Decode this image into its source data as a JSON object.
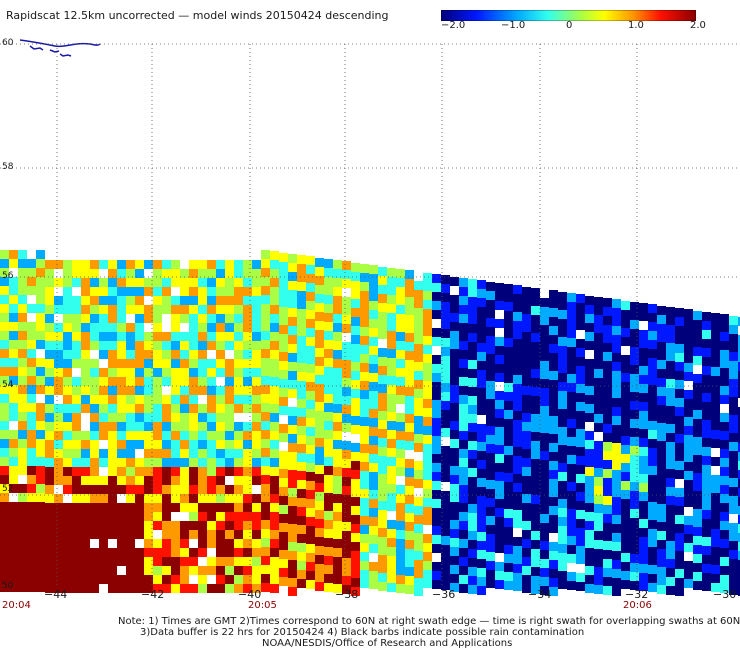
{
  "title": "Rapidscat 12.5km uncorrected — model winds 20150424 descending",
  "colorbar": {
    "ticks": [
      "−2.0",
      "−1.0",
      "0",
      "1.0",
      "2.0"
    ],
    "min": -2.0,
    "max": 2.0,
    "colors": [
      "#00007a",
      "#0018ff",
      "#00aaff",
      "#33ffee",
      "#aaff44",
      "#ffff00",
      "#ff9900",
      "#ff1100",
      "#8b0000"
    ]
  },
  "map": {
    "lat_labels": [
      "60",
      "58",
      "56",
      "54",
      "52",
      "50"
    ],
    "lon_labels": [
      "−44",
      "−42",
      "−40",
      "−38",
      "−36",
      "−34",
      "−32",
      "−30"
    ],
    "time_labels": [
      "20:04",
      "20:05",
      "20:06"
    ],
    "lat_range": [
      50,
      60
    ],
    "lon_range": [
      -45,
      -30
    ],
    "land_color": "#1a1aa8",
    "grid": true
  },
  "notes": [
    "Note: 1) Times are GMT 2)Times correspond to 60N at right swath edge — time is right swath for overlapping swaths at 60N",
    "3)Data buffer is 22 hrs for 20150424 4) Black barbs indicate possible rain contamination",
    "NOAA/NESDIS/Office of Research and Applications"
  ]
}
